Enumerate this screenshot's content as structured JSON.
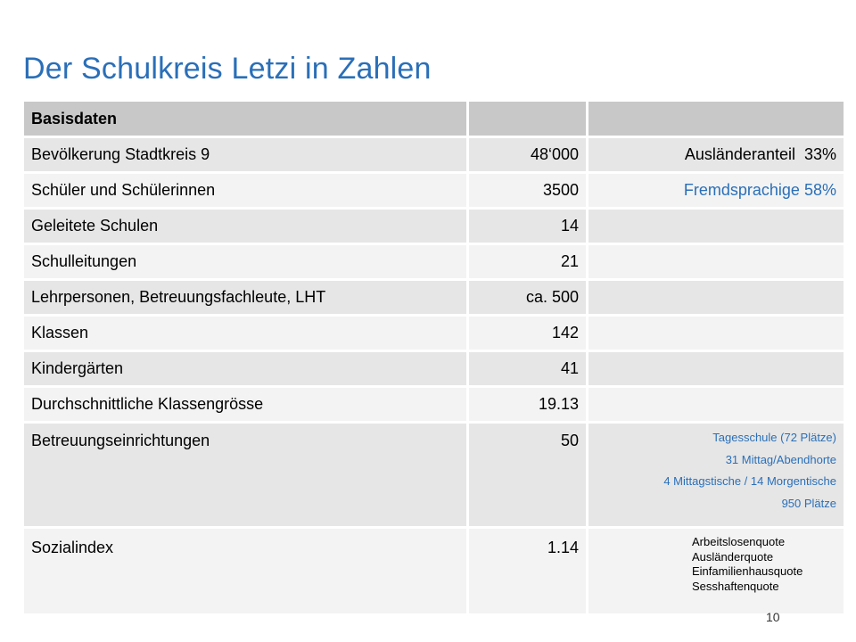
{
  "title": "Der Schulkreis Letzi in Zahlen",
  "table": {
    "header": {
      "label": "Basisdaten",
      "value": "",
      "extra": ""
    },
    "rows": [
      {
        "label": "Bevölkerung Stadtkreis 9",
        "value": "48‘000",
        "extra_label": "Ausländeranteil",
        "extra_value": "33%"
      },
      {
        "label": "Schüler und Schülerinnen",
        "value": "3500",
        "extra_label": "Fremdsprachige",
        "extra_value": "58%"
      },
      {
        "label": "Geleitete Schulen",
        "value": "14"
      },
      {
        "label": "Schulleitungen",
        "value": "21"
      },
      {
        "label": "Lehrpersonen, Betreuungsfachleute, LHT",
        "value": "ca. 500"
      },
      {
        "label": "Klassen",
        "value": "142"
      },
      {
        "label": "Kindergärten",
        "value": "41"
      },
      {
        "label": "Durchschnittliche Klassengrösse",
        "value": "19.13"
      },
      {
        "label": "Betreuungseinrichtungen",
        "value": "50",
        "notes": [
          "Tagesschule (72 Plätze)",
          "31 Mittag/Abendhorte",
          "4 Mittagstische / 14 Morgentische",
          "950 Plätze"
        ]
      },
      {
        "label": "Sozialindex",
        "value": "1.14",
        "notes": [
          "Arbeitslosenquote",
          "Ausländerquote",
          "Einfamilienhausquote",
          "Sesshaftenquote"
        ]
      }
    ]
  },
  "page_number": "10",
  "colors": {
    "accent": "#2a6fb8",
    "header_bg": "#c8c8c8",
    "row_dark": "#e6e6e6",
    "row_light": "#f3f3f3"
  }
}
